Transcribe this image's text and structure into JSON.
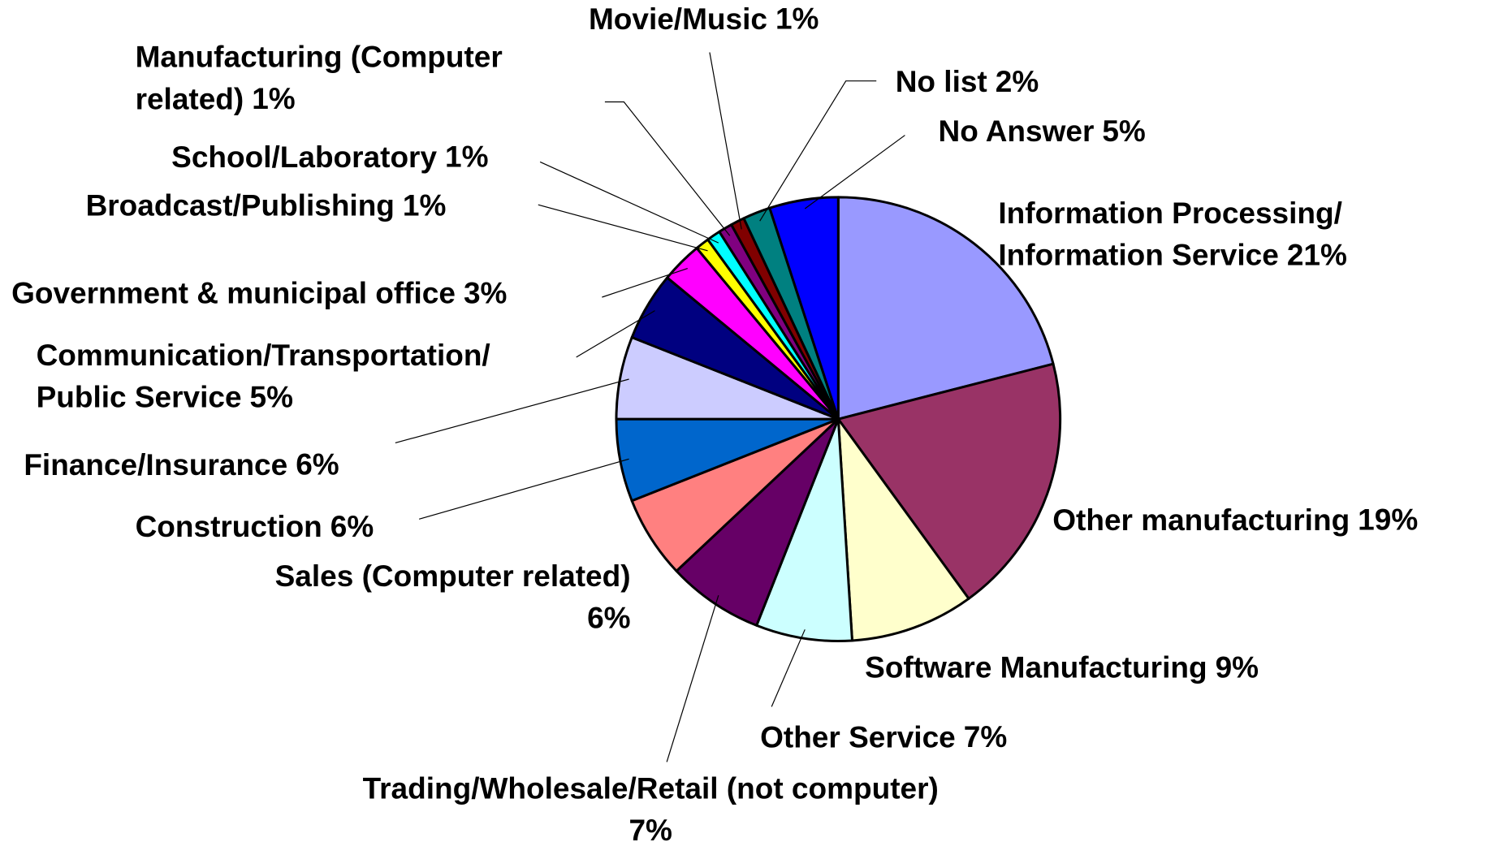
{
  "chart_data": {
    "type": "pie",
    "categories": [
      "Information Processing/\nInformation Service",
      "Other manufacturing",
      "Software Manufacturing",
      "Other Service",
      "Trading/Wholesale/Retail (not computer)",
      "Sales (Computer related)",
      "Construction",
      "Finance/Insurance",
      "Communication/Transportation/\nPublic Service",
      "Government & municipal office",
      "Broadcast/Publishing",
      "School/Laboratory",
      "Manufacturing (Computer\nrelated) ",
      "Movie/Music",
      "No list",
      "No Answer"
    ],
    "values": [
      21,
      19,
      9,
      7,
      7,
      6,
      6,
      6,
      5,
      3,
      1,
      1,
      1,
      1,
      2,
      5
    ],
    "value_labels": [
      "21%",
      "19%",
      "9%",
      "7%",
      "7%",
      "6%",
      "6%",
      "6%",
      "5%",
      "3%",
      "1%",
      "1%",
      "1%",
      "1%",
      "2%",
      "5%"
    ],
    "colors": [
      "#9999ff",
      "#993366",
      "#ffffcc",
      "#ccffff",
      "#660066",
      "#ff8080",
      "#0066cc",
      "#ccccff",
      "#000080",
      "#ff00ff",
      "#ffff00",
      "#00ffff",
      "#800080",
      "#800000",
      "#008080",
      "#0000ff"
    ]
  }
}
